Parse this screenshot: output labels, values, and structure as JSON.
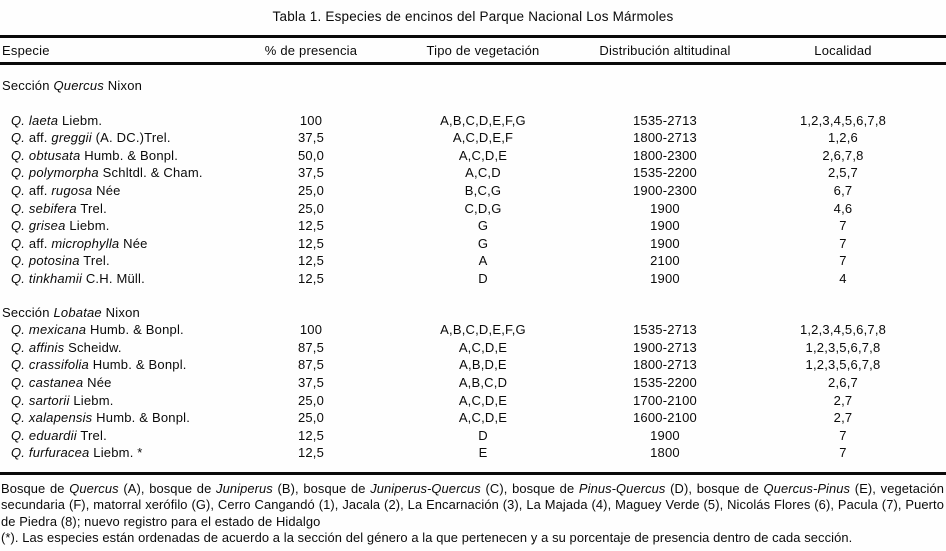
{
  "title": "Tabla 1. Especies de encinos del Parque Nacional Los Mármoles",
  "columns": [
    "Especie",
    "% de presencia",
    "Tipo de vegetación",
    "Distribución altitudinal",
    "Localidad"
  ],
  "sections": [
    {
      "header": [
        {
          "t": "Sección ",
          "i": false
        },
        {
          "t": "Quercus",
          "i": true
        },
        {
          "t": " Nixon",
          "i": false
        }
      ],
      "gap_after_header": true,
      "rows": [
        {
          "species": [
            {
              "t": "Q. laeta",
              "i": true
            },
            {
              "t": " Liebm.",
              "i": false
            }
          ],
          "presencia": "100",
          "vegetacion": "A,B,C,D,E,F,G",
          "altitud": "1535-2713",
          "localidad": "1,2,3,4,5,6,7,8"
        },
        {
          "species": [
            {
              "t": "Q.",
              "i": true
            },
            {
              "t": " aff. ",
              "i": false
            },
            {
              "t": "greggii",
              "i": true
            },
            {
              "t": " (A. DC.)Trel.",
              "i": false
            }
          ],
          "presencia": "37,5",
          "vegetacion": "A,C,D,E,F",
          "altitud": "1800-2713",
          "localidad": "1,2,6"
        },
        {
          "species": [
            {
              "t": "Q. obtusata",
              "i": true
            },
            {
              "t": " Humb. & Bonpl.",
              "i": false
            }
          ],
          "presencia": "50,0",
          "vegetacion": "A,C,D,E",
          "altitud": "1800-2300",
          "localidad": "2,6,7,8"
        },
        {
          "species": [
            {
              "t": "Q. polymorpha",
              "i": true
            },
            {
              "t": " Schltdl. & Cham.",
              "i": false
            }
          ],
          "presencia": "37,5",
          "vegetacion": "A,C,D",
          "altitud": "1535-2200",
          "localidad": "2,5,7"
        },
        {
          "species": [
            {
              "t": "Q.",
              "i": true
            },
            {
              "t": " aff. ",
              "i": false
            },
            {
              "t": "rugosa",
              "i": true
            },
            {
              "t": " Née",
              "i": false
            }
          ],
          "presencia": "25,0",
          "vegetacion": "B,C,G",
          "altitud": "1900-2300",
          "localidad": "6,7"
        },
        {
          "species": [
            {
              "t": "Q. sebifera",
              "i": true
            },
            {
              "t": " Trel.",
              "i": false
            }
          ],
          "presencia": "25,0",
          "vegetacion": "C,D,G",
          "altitud": "1900",
          "localidad": "4,6"
        },
        {
          "species": [
            {
              "t": "Q. grisea",
              "i": true
            },
            {
              "t": " Liebm.",
              "i": false
            }
          ],
          "presencia": "12,5",
          "vegetacion": "G",
          "altitud": "1900",
          "localidad": "7"
        },
        {
          "species": [
            {
              "t": "Q.",
              "i": true
            },
            {
              "t": " aff. ",
              "i": false
            },
            {
              "t": "microphylla",
              "i": true
            },
            {
              "t": " Née",
              "i": false
            }
          ],
          "presencia": "12,5",
          "vegetacion": "G",
          "altitud": "1900",
          "localidad": "7"
        },
        {
          "species": [
            {
              "t": "Q. potosina",
              "i": true
            },
            {
              "t": " Trel.",
              "i": false
            }
          ],
          "presencia": "12,5",
          "vegetacion": "A",
          "altitud": "2100",
          "localidad": "7"
        },
        {
          "species": [
            {
              "t": "Q. tinkhamii",
              "i": true
            },
            {
              "t": " C.H. Müll.",
              "i": false
            }
          ],
          "presencia": "12,5",
          "vegetacion": "D",
          "altitud": "1900",
          "localidad": "4"
        }
      ]
    },
    {
      "header": [
        {
          "t": "Sección ",
          "i": false
        },
        {
          "t": "Lobatae",
          "i": true
        },
        {
          "t": " Nixon",
          "i": false
        }
      ],
      "gap_after_header": false,
      "rows": [
        {
          "species": [
            {
              "t": "Q. mexicana",
              "i": true
            },
            {
              "t": " Humb. & Bonpl.",
              "i": false
            }
          ],
          "presencia": "100",
          "vegetacion": "A,B,C,D,E,F,G",
          "altitud": "1535-2713",
          "localidad": "1,2,3,4,5,6,7,8"
        },
        {
          "species": [
            {
              "t": "Q. affinis",
              "i": true
            },
            {
              "t": " Scheidw.",
              "i": false
            }
          ],
          "presencia": "87,5",
          "vegetacion": "A,C,D,E",
          "altitud": "1900-2713",
          "localidad": "1,2,3,5,6,7,8"
        },
        {
          "species": [
            {
              "t": "Q. crassifolia",
              "i": true
            },
            {
              "t": " Humb. & Bonpl.",
              "i": false
            }
          ],
          "presencia": "87,5",
          "vegetacion": "A,B,D,E",
          "altitud": "1800-2713",
          "localidad": "1,2,3,5,6,7,8"
        },
        {
          "species": [
            {
              "t": "Q. castanea",
              "i": true
            },
            {
              "t": " Née",
              "i": false
            }
          ],
          "presencia": "37,5",
          "vegetacion": "A,B,C,D",
          "altitud": "1535-2200",
          "localidad": "2,6,7"
        },
        {
          "species": [
            {
              "t": "Q. sartorii",
              "i": true
            },
            {
              "t": " Liebm.",
              "i": false
            }
          ],
          "presencia": "25,0",
          "vegetacion": "A,C,D,E",
          "altitud": "1700-2100",
          "localidad": "2,7"
        },
        {
          "species": [
            {
              "t": "Q. xalapensis",
              "i": true
            },
            {
              "t": " Humb. & Bonpl.",
              "i": false
            }
          ],
          "presencia": "25,0",
          "vegetacion": "A,C,D,E",
          "altitud": "1600-2100",
          "localidad": "2,7"
        },
        {
          "species": [
            {
              "t": "Q. eduardii",
              "i": true
            },
            {
              "t": " Trel.",
              "i": false
            }
          ],
          "presencia": "12,5",
          "vegetacion": "D",
          "altitud": "1900",
          "localidad": "7"
        },
        {
          "species": [
            {
              "t": "Q. furfuracea",
              "i": true
            },
            {
              "t": " Liebm. *",
              "i": false
            }
          ],
          "presencia": "12,5",
          "vegetacion": "E",
          "altitud": "1800",
          "localidad": "7"
        }
      ]
    }
  ],
  "footnotes": [
    {
      "segments": [
        {
          "t": "Bosque de ",
          "i": false
        },
        {
          "t": "Quercus",
          "i": true
        },
        {
          "t": " (A), bosque de ",
          "i": false
        },
        {
          "t": "Juniperus",
          "i": true
        },
        {
          "t": " (B), bosque de ",
          "i": false
        },
        {
          "t": "Juniperus-Quercus",
          "i": true
        },
        {
          "t": " (C), bosque de ",
          "i": false
        },
        {
          "t": "Pinus-Quercus",
          "i": true
        },
        {
          "t": " (D), bosque de ",
          "i": false
        },
        {
          "t": "Quercus-Pinus",
          "i": true
        },
        {
          "t": " (E), vegetación secundaria (F), matorral xerófilo (G), Cerro Cangandó (1), Jacala (2), La Encarnación (3), La Majada (4), Maguey Verde (5), Nicolás Flores (6), Pacula (7), Puerto de Piedra (8); nuevo registro para el estado de Hidalgo",
          "i": false
        }
      ]
    },
    {
      "segments": [
        {
          "t": "(*). Las especies están ordenadas de acuerdo a la sección del género a la que pertenecen y a su porcentaje de presencia dentro de cada sección.",
          "i": false
        }
      ]
    }
  ]
}
